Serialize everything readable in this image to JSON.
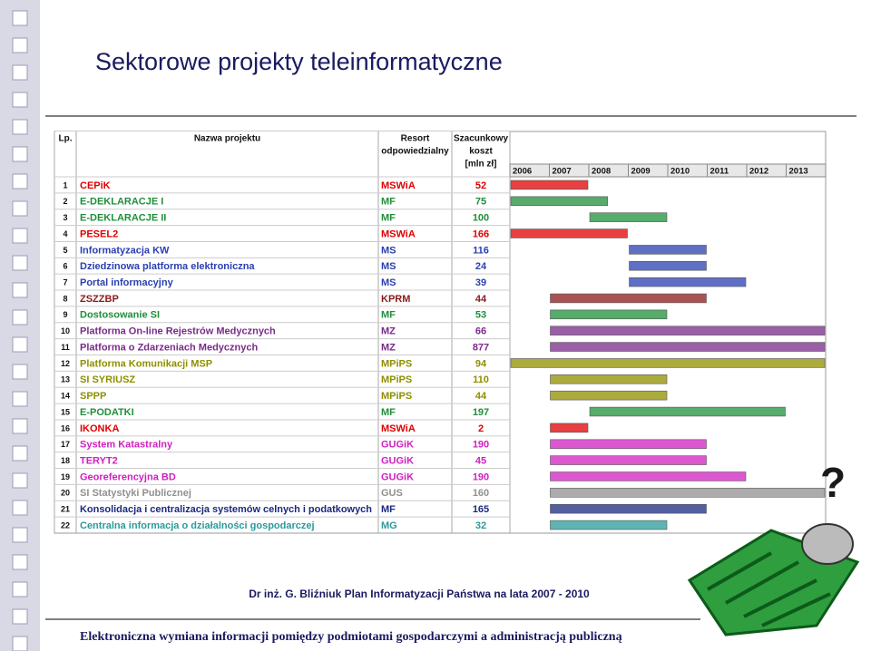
{
  "title": "Sektorowe projekty teleinformatyczne",
  "table": {
    "headers": [
      [
        "Lp."
      ],
      [
        "Nazwa projektu"
      ],
      [
        "Resort",
        "odpowiedzialny"
      ],
      [
        "Szacunkowy",
        "koszt",
        "[mln zł]"
      ]
    ],
    "years": [
      "2006",
      "2007",
      "2008",
      "2009",
      "2010",
      "2011",
      "2012",
      "2013"
    ],
    "rows": [
      {
        "lp": "1",
        "name": "CEPiK",
        "resort": "MSWiA",
        "cost": "52",
        "color": "#e00000",
        "start": 2006,
        "end": 2008
      },
      {
        "lp": "2",
        "name": "E-DEKLARACJE I",
        "resort": "MF",
        "cost": "75",
        "color": "#1f8f3a",
        "start": 2006,
        "end": 2008.5
      },
      {
        "lp": "3",
        "name": "E-DEKLARACJE II",
        "resort": "MF",
        "cost": "100",
        "color": "#1f8f3a",
        "start": 2008,
        "end": 2010
      },
      {
        "lp": "4",
        "name": "PESEL2",
        "resort": "MSWiA",
        "cost": "166",
        "color": "#e00000",
        "start": 2006,
        "end": 2009
      },
      {
        "lp": "5",
        "name": "Informatyzacja KW",
        "resort": "MS",
        "cost": "116",
        "color": "#2a3fb0",
        "start": 2009,
        "end": 2011
      },
      {
        "lp": "6",
        "name": "Dziedzinowa platforma elektroniczna",
        "resort": "MS",
        "cost": "24",
        "color": "#2a3fb0",
        "start": 2009,
        "end": 2011
      },
      {
        "lp": "7",
        "name": "Portal informacyjny",
        "resort": "MS",
        "cost": "39",
        "color": "#2a3fb0",
        "start": 2009,
        "end": 2012
      },
      {
        "lp": "8",
        "name": "ZSZZBP",
        "resort": "KPRM",
        "cost": "44",
        "color": "#8b1a1a",
        "start": 2007,
        "end": 2011
      },
      {
        "lp": "9",
        "name": "Dostosowanie SI",
        "resort": "MF",
        "cost": "53",
        "color": "#1f8f3a",
        "start": 2007,
        "end": 2010
      },
      {
        "lp": "10",
        "name": "Platforma On-line Rejestrów Medycznych",
        "resort": "MZ",
        "cost": "66",
        "color": "#7a2a8a",
        "start": 2007,
        "end": 2014
      },
      {
        "lp": "11",
        "name": "Platforma o Zdarzeniach Medycznych",
        "resort": "MZ",
        "cost": "877",
        "color": "#7a2a8a",
        "start": 2007,
        "end": 2014
      },
      {
        "lp": "12",
        "name": "Platforma Komunikacji MSP",
        "resort": "MPiPS",
        "cost": "94",
        "color": "#8f8f00",
        "start": 2006,
        "end": 2014
      },
      {
        "lp": "13",
        "name": "SI SYRIUSZ",
        "resort": "MPiPS",
        "cost": "110",
        "color": "#8f8f00",
        "start": 2007,
        "end": 2010
      },
      {
        "lp": "14",
        "name": "SPPP",
        "resort": "MPiPS",
        "cost": "44",
        "color": "#8f8f00",
        "start": 2007,
        "end": 2010
      },
      {
        "lp": "15",
        "name": "E-PODATKI",
        "resort": "MF",
        "cost": "197",
        "color": "#1f8f3a",
        "start": 2008,
        "end": 2013
      },
      {
        "lp": "16",
        "name": "IKONKA",
        "resort": "MSWiA",
        "cost": "2",
        "color": "#e00000",
        "start": 2007,
        "end": 2008
      },
      {
        "lp": "17",
        "name": "System Katastralny",
        "resort": "GUGiK",
        "cost": "190",
        "color": "#d020c0",
        "start": 2007,
        "end": 2011
      },
      {
        "lp": "18",
        "name": "TERYT2",
        "resort": "GUGiK",
        "cost": "45",
        "color": "#d020c0",
        "start": 2007,
        "end": 2011
      },
      {
        "lp": "19",
        "name": "Georeferencyjna BD",
        "resort": "GUGiK",
        "cost": "190",
        "color": "#d020c0",
        "start": 2007,
        "end": 2012
      },
      {
        "lp": "20",
        "name": "SI Statystyki Publicznej",
        "resort": "GUS",
        "cost": "160",
        "color": "#909090",
        "start": 2007,
        "end": 2014
      },
      {
        "lp": "21",
        "name": "Konsolidacja i centralizacja systemów celnych i podatkowych",
        "resort": "MF",
        "cost": "165",
        "color": "#1a2a80",
        "start": 2007,
        "end": 2011
      },
      {
        "lp": "22",
        "name": "Centralna informacja o działalności gospodarczej",
        "resort": "MG",
        "cost": "32",
        "color": "#2a9a9a",
        "start": 2007,
        "end": 2010
      }
    ]
  },
  "question": "?",
  "footer": {
    "author": "Dr inż. G. Bliźniuk Plan Informatyzacji Państwa na lata 2007 - 2010",
    "subtitle": "Elektroniczna wymiana informacji pomiędzy podmiotami gospodarczymi a administracją publiczną"
  }
}
